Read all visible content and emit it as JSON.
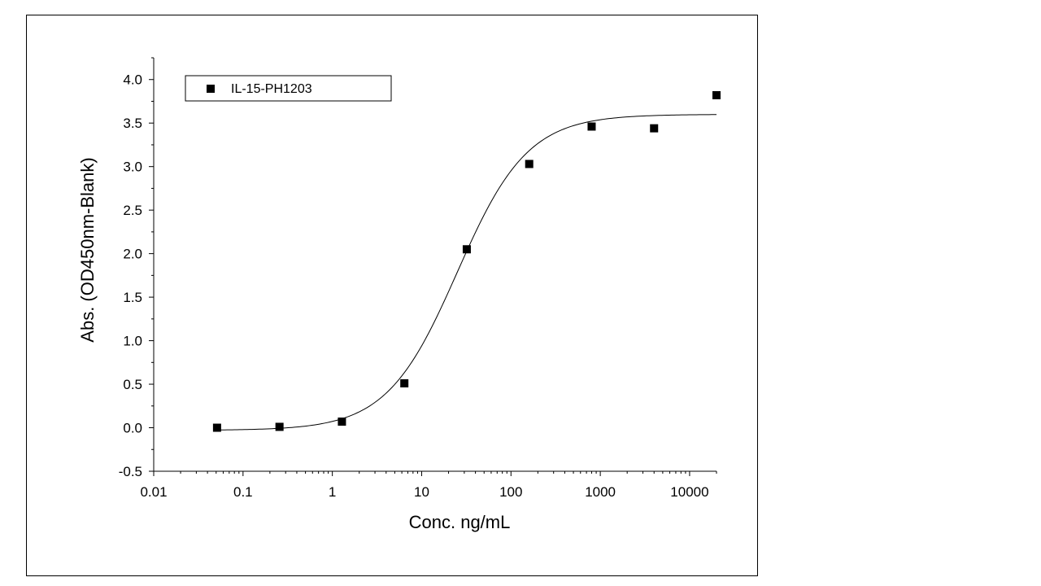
{
  "chart_data": {
    "type": "scatter",
    "xlabel": "Conc. ng/mL",
    "ylabel": "Abs. (OD450nm-Blank)",
    "x_scale": "log",
    "xlim": [
      0.01,
      20000
    ],
    "ylim": [
      -0.5,
      4.25
    ],
    "x_ticks": [
      {
        "value": 0.01,
        "label": "0.01"
      },
      {
        "value": 0.1,
        "label": "0.1"
      },
      {
        "value": 1,
        "label": "1"
      },
      {
        "value": 10,
        "label": "10"
      },
      {
        "value": 100,
        "label": "100"
      },
      {
        "value": 1000,
        "label": "1000"
      },
      {
        "value": 10000,
        "label": "10000"
      }
    ],
    "y_ticks": [
      {
        "value": -0.5,
        "label": "-0.5"
      },
      {
        "value": 0.0,
        "label": "0.0"
      },
      {
        "value": 0.5,
        "label": "0.5"
      },
      {
        "value": 1.0,
        "label": "1.0"
      },
      {
        "value": 1.5,
        "label": "1.5"
      },
      {
        "value": 2.0,
        "label": "2.0"
      },
      {
        "value": 2.5,
        "label": "2.5"
      },
      {
        "value": 3.0,
        "label": "3.0"
      },
      {
        "value": 3.5,
        "label": "3.5"
      },
      {
        "value": 4.0,
        "label": "4.0"
      }
    ],
    "grid": false,
    "legend_position": "top-left",
    "series": [
      {
        "name": "IL-15-PH1203",
        "marker": "square",
        "color": "#000000",
        "x": [
          0.0512,
          0.256,
          1.28,
          6.4,
          32,
          160,
          800,
          4000,
          20000
        ],
        "y": [
          0.0,
          0.01,
          0.07,
          0.51,
          2.05,
          3.03,
          3.46,
          3.44,
          3.82
        ]
      }
    ],
    "fit_curve": {
      "type": "4PL",
      "bottom": -0.03,
      "top": 3.6,
      "ec50": 25,
      "hill": 1.1,
      "x_range": [
        0.0512,
        20000
      ],
      "color": "#000000"
    }
  }
}
